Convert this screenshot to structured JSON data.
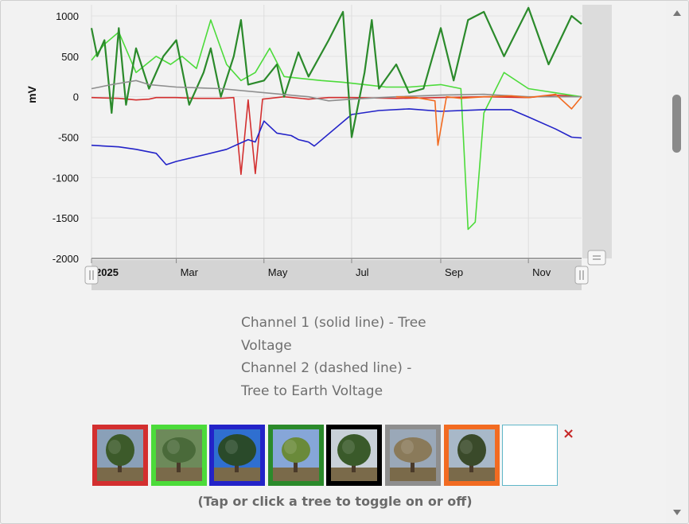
{
  "chart_data": {
    "type": "line",
    "ylabel": "mV",
    "ylim": [
      -2000,
      1000
    ],
    "yticks": [
      1000,
      500,
      0,
      -500,
      -1000,
      -1500,
      -2000
    ],
    "xlim": [
      "2025-01-01",
      "2025-12-08"
    ],
    "xticks": [
      {
        "label": "2025",
        "date": "2025-01-01",
        "bold": true
      },
      {
        "label": "Mar",
        "date": "2025-03-01"
      },
      {
        "label": "May",
        "date": "2025-05-01"
      },
      {
        "label": "Jul",
        "date": "2025-07-01"
      },
      {
        "label": "Sep",
        "date": "2025-09-01"
      },
      {
        "label": "Nov",
        "date": "2025-11-01"
      }
    ],
    "grid": true,
    "series": [
      {
        "color": "#d32f2f",
        "values": [
          [
            "2025-01-01",
            -10
          ],
          [
            "2025-01-20",
            -20
          ],
          [
            "2025-02-01",
            -40
          ],
          [
            "2025-02-10",
            -30
          ],
          [
            "2025-02-15",
            -10
          ],
          [
            "2025-03-01",
            -10
          ],
          [
            "2025-03-15",
            -20
          ],
          [
            "2025-04-01",
            -20
          ],
          [
            "2025-04-10",
            -10
          ],
          [
            "2025-04-15",
            -960
          ],
          [
            "2025-04-20",
            -40
          ],
          [
            "2025-04-25",
            -950
          ],
          [
            "2025-04-30",
            -30
          ],
          [
            "2025-05-15",
            0
          ],
          [
            "2025-06-01",
            -30
          ],
          [
            "2025-06-15",
            -10
          ],
          [
            "2025-07-01",
            -10
          ],
          [
            "2025-08-01",
            -20
          ],
          [
            "2025-09-01",
            -10
          ],
          [
            "2025-10-01",
            0
          ],
          [
            "2025-11-01",
            -10
          ],
          [
            "2025-11-20",
            20
          ],
          [
            "2025-12-08",
            0
          ]
        ]
      },
      {
        "color": "#4cdb3a",
        "values": [
          [
            "2025-01-01",
            450
          ],
          [
            "2025-01-10",
            650
          ],
          [
            "2025-01-20",
            800
          ],
          [
            "2025-02-01",
            300
          ],
          [
            "2025-02-15",
            500
          ],
          [
            "2025-02-25",
            400
          ],
          [
            "2025-03-05",
            500
          ],
          [
            "2025-03-15",
            350
          ],
          [
            "2025-03-25",
            950
          ],
          [
            "2025-04-05",
            400
          ],
          [
            "2025-04-15",
            200
          ],
          [
            "2025-04-25",
            300
          ],
          [
            "2025-05-05",
            600
          ],
          [
            "2025-05-15",
            250
          ],
          [
            "2025-05-25",
            230
          ],
          [
            "2025-06-10",
            200
          ],
          [
            "2025-06-25",
            180
          ],
          [
            "2025-07-10",
            150
          ],
          [
            "2025-07-25",
            120
          ],
          [
            "2025-08-10",
            120
          ],
          [
            "2025-09-01",
            150
          ],
          [
            "2025-09-15",
            100
          ],
          [
            "2025-09-20",
            -1640
          ],
          [
            "2025-09-25",
            -1550
          ],
          [
            "2025-10-01",
            -200
          ],
          [
            "2025-10-15",
            300
          ],
          [
            "2025-11-01",
            100
          ],
          [
            "2025-12-08",
            0
          ]
        ]
      },
      {
        "color": "#2323c8",
        "values": [
          [
            "2025-01-01",
            -600
          ],
          [
            "2025-01-20",
            -620
          ],
          [
            "2025-02-01",
            -650
          ],
          [
            "2025-02-15",
            -700
          ],
          [
            "2025-02-22",
            -840
          ],
          [
            "2025-03-01",
            -800
          ],
          [
            "2025-03-20",
            -720
          ],
          [
            "2025-04-05",
            -650
          ],
          [
            "2025-04-20",
            -530
          ],
          [
            "2025-04-25",
            -560
          ],
          [
            "2025-05-01",
            -300
          ],
          [
            "2025-05-10",
            -450
          ],
          [
            "2025-05-20",
            -480
          ],
          [
            "2025-05-25",
            -530
          ],
          [
            "2025-06-01",
            -560
          ],
          [
            "2025-06-05",
            -610
          ],
          [
            "2025-07-01",
            -220
          ],
          [
            "2025-07-20",
            -170
          ],
          [
            "2025-08-10",
            -150
          ],
          [
            "2025-09-01",
            -180
          ],
          [
            "2025-10-01",
            -160
          ],
          [
            "2025-10-20",
            -160
          ],
          [
            "2025-11-01",
            -250
          ],
          [
            "2025-11-20",
            -400
          ],
          [
            "2025-12-01",
            -500
          ],
          [
            "2025-12-08",
            -510
          ]
        ]
      },
      {
        "color": "#2b8a2b",
        "values": [
          [
            "2025-01-01",
            850
          ],
          [
            "2025-01-05",
            500
          ],
          [
            "2025-01-10",
            700
          ],
          [
            "2025-01-15",
            -200
          ],
          [
            "2025-01-20",
            850
          ],
          [
            "2025-01-25",
            -100
          ],
          [
            "2025-02-01",
            600
          ],
          [
            "2025-02-10",
            100
          ],
          [
            "2025-02-20",
            500
          ],
          [
            "2025-03-01",
            700
          ],
          [
            "2025-03-10",
            -100
          ],
          [
            "2025-03-20",
            300
          ],
          [
            "2025-03-25",
            600
          ],
          [
            "2025-04-01",
            0
          ],
          [
            "2025-04-10",
            500
          ],
          [
            "2025-04-15",
            950
          ],
          [
            "2025-04-20",
            150
          ],
          [
            "2025-05-01",
            200
          ],
          [
            "2025-05-10",
            400
          ],
          [
            "2025-05-15",
            0
          ],
          [
            "2025-05-25",
            550
          ],
          [
            "2025-06-01",
            250
          ],
          [
            "2025-06-15",
            700
          ],
          [
            "2025-06-25",
            1050
          ],
          [
            "2025-07-01",
            -500
          ],
          [
            "2025-07-10",
            300
          ],
          [
            "2025-07-15",
            950
          ],
          [
            "2025-07-20",
            100
          ],
          [
            "2025-08-01",
            400
          ],
          [
            "2025-08-10",
            50
          ],
          [
            "2025-08-20",
            100
          ],
          [
            "2025-09-01",
            850
          ],
          [
            "2025-09-10",
            200
          ],
          [
            "2025-09-20",
            950
          ],
          [
            "2025-10-01",
            1050
          ],
          [
            "2025-10-15",
            500
          ],
          [
            "2025-11-01",
            1100
          ],
          [
            "2025-11-15",
            400
          ],
          [
            "2025-12-01",
            1000
          ],
          [
            "2025-12-08",
            900
          ]
        ]
      },
      {
        "color": "#8e8e8e",
        "values": [
          [
            "2025-01-01",
            100
          ],
          [
            "2025-01-15",
            150
          ],
          [
            "2025-02-01",
            200
          ],
          [
            "2025-02-10",
            150
          ],
          [
            "2025-03-01",
            120
          ],
          [
            "2025-04-01",
            100
          ],
          [
            "2025-05-01",
            50
          ],
          [
            "2025-06-01",
            0
          ],
          [
            "2025-06-15",
            -50
          ],
          [
            "2025-07-01",
            -30
          ],
          [
            "2025-08-01",
            0
          ],
          [
            "2025-09-01",
            20
          ],
          [
            "2025-10-01",
            30
          ],
          [
            "2025-11-01",
            0
          ],
          [
            "2025-12-08",
            0
          ]
        ]
      },
      {
        "color": "#f26b21",
        "values": [
          [
            "2025-08-01",
            0
          ],
          [
            "2025-08-15",
            -10
          ],
          [
            "2025-08-28",
            -50
          ],
          [
            "2025-08-30",
            -600
          ],
          [
            "2025-09-02",
            -300
          ],
          [
            "2025-09-05",
            0
          ],
          [
            "2025-09-15",
            -20
          ],
          [
            "2025-10-01",
            0
          ],
          [
            "2025-10-20",
            10
          ],
          [
            "2025-11-01",
            -10
          ],
          [
            "2025-11-20",
            30
          ],
          [
            "2025-12-01",
            -150
          ],
          [
            "2025-12-08",
            0
          ]
        ]
      }
    ]
  },
  "caption": {
    "line1": "Channel 1 (solid line) - Tree",
    "line2": "Voltage",
    "line3": "Channel 2 (dashed line) -",
    "line4": "Tree to Earth Voltage"
  },
  "trees": [
    {
      "name": "tree-1",
      "color": "#d32f2f"
    },
    {
      "name": "tree-2",
      "color": "#4cdb3a"
    },
    {
      "name": "tree-3",
      "color": "#2323c8"
    },
    {
      "name": "tree-4",
      "color": "#2b8a2b"
    },
    {
      "name": "tree-5",
      "color": "#000000"
    },
    {
      "name": "tree-6",
      "color": "#8e8e8e"
    },
    {
      "name": "tree-7",
      "color": "#f26b21"
    },
    {
      "name": "tree-8",
      "color": "#5fb6c8"
    }
  ],
  "close_icon": "×",
  "hint": "(Tap or click a tree to toggle on or off)"
}
